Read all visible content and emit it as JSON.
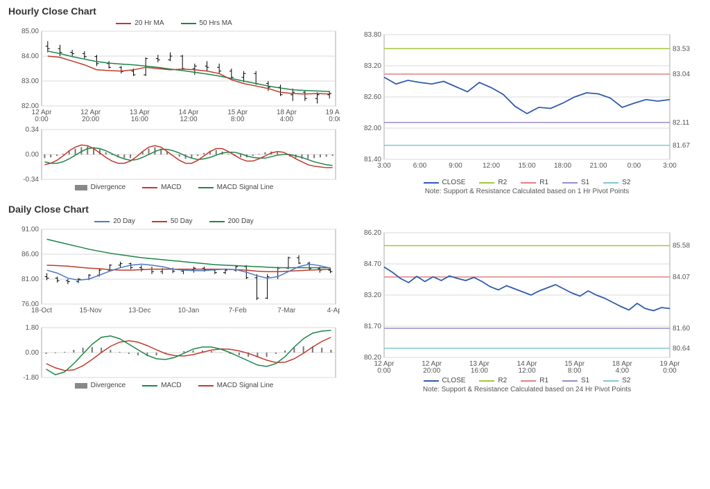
{
  "hourly": {
    "title": "Hourly Close Chart",
    "price": {
      "ylim": [
        82.0,
        85.0
      ],
      "yticks": [
        82.0,
        83.0,
        84.0,
        85.0
      ],
      "xlabels": [
        "12 Apr\n0:00",
        "12 Apr\n20:00",
        "13 Apr\n16:00",
        "14 Apr\n12:00",
        "15 Apr\n8:00",
        "18 Apr\n4:00",
        "19 Apr\n0:00"
      ],
      "legend": [
        {
          "label": "20 Hr MA",
          "color": "#c0392b"
        },
        {
          "label": "50 Hrs MA",
          "color": "#1e8449"
        }
      ],
      "ma20": [
        84.0,
        83.95,
        83.8,
        83.65,
        83.45,
        83.42,
        83.4,
        83.45,
        83.55,
        83.5,
        83.45,
        83.48,
        83.45,
        83.4,
        83.3,
        83.05,
        82.9,
        82.8,
        82.7,
        82.55,
        82.5,
        82.48,
        82.5,
        82.48
      ],
      "ma50": [
        84.2,
        84.1,
        83.98,
        83.88,
        83.78,
        83.72,
        83.68,
        83.65,
        83.6,
        83.55,
        83.48,
        83.42,
        83.35,
        83.28,
        83.2,
        83.1,
        83.0,
        82.9,
        82.8,
        82.72,
        82.65,
        82.62,
        82.6,
        82.58
      ],
      "ohlc": [
        [
          84.4,
          84.6,
          84.15,
          84.3
        ],
        [
          84.3,
          84.45,
          84.0,
          84.15
        ],
        [
          84.15,
          84.25,
          84.0,
          84.1
        ],
        [
          84.1,
          84.2,
          83.9,
          83.98
        ],
        [
          83.98,
          84.05,
          83.6,
          83.7
        ],
        [
          83.7,
          83.8,
          83.5,
          83.55
        ],
        [
          83.55,
          83.6,
          83.3,
          83.38
        ],
        [
          83.4,
          83.5,
          83.2,
          83.25
        ],
        [
          83.25,
          83.95,
          83.2,
          83.9
        ],
        [
          83.9,
          84.05,
          83.75,
          83.85
        ],
        [
          83.85,
          84.15,
          83.8,
          84.0
        ],
        [
          84.0,
          84.05,
          83.45,
          83.5
        ],
        [
          83.5,
          83.7,
          83.25,
          83.6
        ],
        [
          83.6,
          83.8,
          83.4,
          83.55
        ],
        [
          83.55,
          83.7,
          83.3,
          83.4
        ],
        [
          83.4,
          83.5,
          83.1,
          83.15
        ],
        [
          83.15,
          83.4,
          82.95,
          83.3
        ],
        [
          83.3,
          83.4,
          82.85,
          82.9
        ],
        [
          82.9,
          83.0,
          82.6,
          82.75
        ],
        [
          82.75,
          82.85,
          82.4,
          82.45
        ],
        [
          82.45,
          82.7,
          82.2,
          82.55
        ],
        [
          82.55,
          82.6,
          82.2,
          82.3
        ],
        [
          82.3,
          82.55,
          82.1,
          82.45
        ],
        [
          82.45,
          82.6,
          82.3,
          82.5
        ]
      ],
      "ma20_color": "#c0392b",
      "ma50_color": "#1e8449",
      "ohlc_color": "#000"
    },
    "macd": {
      "ylim": [
        -0.34,
        0.34
      ],
      "yticks": [
        -0.34,
        0.0,
        0.34
      ],
      "legend": [
        {
          "label": "Divergence",
          "color": "#888",
          "box": true
        },
        {
          "label": "MACD",
          "color": "#c0392b"
        },
        {
          "label": "MACD Signal Line",
          "color": "#1e8449"
        }
      ],
      "div": [
        -0.05,
        -0.04,
        -0.02,
        0.01,
        0.05,
        0.08,
        0.1,
        0.11,
        0.1,
        0.07,
        0.03,
        -0.01,
        -0.04,
        -0.05,
        -0.05,
        0.0,
        0.04,
        0.08,
        0.1,
        0.08,
        0.04,
        0.0,
        -0.03,
        -0.06,
        -0.05,
        -0.02,
        0.02,
        0.05,
        0.06,
        0.04,
        0.01,
        -0.02,
        -0.04,
        -0.04,
        -0.02,
        0.01,
        0.03,
        0.04,
        0.03,
        0.0,
        -0.03,
        -0.05,
        -0.06,
        -0.06,
        -0.05,
        -0.04,
        -0.03,
        -0.02
      ],
      "macd": [
        -0.14,
        -0.12,
        -0.08,
        -0.02,
        0.05,
        0.1,
        0.13,
        0.12,
        0.08,
        0.02,
        -0.04,
        -0.09,
        -0.12,
        -0.12,
        -0.09,
        -0.03,
        0.04,
        0.1,
        0.12,
        0.1,
        0.04,
        -0.02,
        -0.08,
        -0.12,
        -0.12,
        -0.08,
        -0.02,
        0.04,
        0.08,
        0.08,
        0.04,
        -0.01,
        -0.06,
        -0.09,
        -0.09,
        -0.06,
        -0.02,
        0.02,
        0.04,
        0.03,
        -0.01,
        -0.06,
        -0.1,
        -0.14,
        -0.16,
        -0.17,
        -0.18,
        -0.18
      ],
      "signal": [
        -0.1,
        -0.12,
        -0.12,
        -0.1,
        -0.06,
        -0.01,
        0.04,
        0.08,
        0.09,
        0.08,
        0.05,
        0.01,
        -0.03,
        -0.06,
        -0.08,
        -0.07,
        -0.04,
        0.0,
        0.04,
        0.07,
        0.07,
        0.05,
        0.02,
        -0.02,
        -0.05,
        -0.07,
        -0.06,
        -0.04,
        -0.01,
        0.02,
        0.03,
        0.03,
        0.01,
        -0.02,
        -0.04,
        -0.05,
        -0.05,
        -0.03,
        -0.01,
        0.0,
        0.0,
        -0.02,
        -0.04,
        -0.07,
        -0.1,
        -0.12,
        -0.14,
        -0.15
      ],
      "macd_color": "#c0392b",
      "signal_color": "#1e8449",
      "div_color": "#777"
    },
    "pivot": {
      "ylim": [
        81.4,
        83.8
      ],
      "yticks": [
        81.4,
        82.0,
        82.6,
        83.2,
        83.8
      ],
      "xlabels": [
        "3:00",
        "6:00",
        "9:00",
        "12:00",
        "15:00",
        "18:00",
        "21:00",
        "0:00",
        "3:00"
      ],
      "levels": [
        {
          "name": "R2",
          "val": 83.53,
          "color": "#a4c639"
        },
        {
          "name": "R1",
          "val": 83.04,
          "color": "#e08080"
        },
        {
          "name": "S1",
          "val": 82.11,
          "color": "#9b8bc9"
        },
        {
          "name": "S2",
          "val": 81.67,
          "color": "#7ec8d8"
        }
      ],
      "close": [
        82.98,
        82.85,
        82.92,
        82.88,
        82.85,
        82.9,
        82.8,
        82.7,
        82.88,
        82.78,
        82.65,
        82.42,
        82.28,
        82.4,
        82.38,
        82.48,
        82.6,
        82.68,
        82.66,
        82.58,
        82.4,
        82.48,
        82.55,
        82.52,
        82.55
      ],
      "close_color": "#2e5aac",
      "legend": [
        {
          "label": "CLOSE",
          "color": "#2e5aac"
        },
        {
          "label": "R2",
          "color": "#a4c639"
        },
        {
          "label": "R1",
          "color": "#e08080"
        },
        {
          "label": "S1",
          "color": "#9b8bc9"
        },
        {
          "label": "S2",
          "color": "#7ec8d8"
        }
      ],
      "note": "Note: Support & Resistance Calculated based on 1 Hr Pivot Points"
    }
  },
  "daily": {
    "title": "Daily Close Chart",
    "price": {
      "ylim": [
        76.0,
        91.0
      ],
      "yticks": [
        76.0,
        81.0,
        86.0,
        91.0
      ],
      "xlabels": [
        "18-Oct",
        "15-Nov",
        "13-Dec",
        "10-Jan",
        "7-Feb",
        "7-Mar",
        "4-Apr"
      ],
      "legend": [
        {
          "label": "20 Day",
          "color": "#4a78c4"
        },
        {
          "label": "50 Day",
          "color": "#c0392b"
        },
        {
          "label": "200 Day",
          "color": "#1e8449"
        }
      ],
      "ma20": [
        82.8,
        82.2,
        81.2,
        80.8,
        81.0,
        81.8,
        82.6,
        83.3,
        83.8,
        84.0,
        83.8,
        83.5,
        83.0,
        82.8,
        82.7,
        82.7,
        82.9,
        83.0,
        82.9,
        82.4,
        81.7,
        81.2,
        81.5,
        82.5,
        83.5,
        84.0,
        83.7,
        83.2
      ],
      "ma50": [
        83.8,
        83.7,
        83.6,
        83.4,
        83.2,
        83.1,
        82.9,
        82.8,
        82.8,
        82.9,
        83.0,
        83.0,
        83.0,
        83.0,
        83.0,
        83.0,
        83.0,
        83.0,
        82.9,
        82.8,
        82.6,
        82.5,
        82.5,
        82.6,
        82.7,
        82.8,
        82.9,
        83.0
      ],
      "ma200": [
        89.0,
        88.5,
        88.0,
        87.5,
        87.0,
        86.6,
        86.2,
        85.9,
        85.6,
        85.3,
        85.1,
        84.9,
        84.7,
        84.5,
        84.3,
        84.1,
        83.9,
        83.8,
        83.7,
        83.6,
        83.5,
        83.4,
        83.3,
        83.3,
        83.3,
        83.3,
        83.3,
        83.3
      ],
      "ohlc": [
        [
          81.5,
          82.2,
          80.8,
          81.2
        ],
        [
          81.2,
          81.5,
          80.3,
          80.7
        ],
        [
          80.7,
          81.0,
          80.0,
          80.5
        ],
        [
          80.5,
          81.2,
          80.2,
          81.0
        ],
        [
          81.0,
          82.0,
          80.8,
          81.8
        ],
        [
          81.8,
          83.0,
          81.5,
          82.8
        ],
        [
          82.8,
          84.0,
          82.5,
          83.8
        ],
        [
          83.8,
          84.5,
          83.2,
          84.1
        ],
        [
          84.1,
          84.3,
          83.0,
          83.3
        ],
        [
          83.3,
          83.8,
          82.5,
          83.0
        ],
        [
          83.0,
          83.5,
          82.0,
          82.5
        ],
        [
          82.5,
          83.2,
          82.0,
          83.0
        ],
        [
          83.0,
          83.3,
          82.2,
          82.6
        ],
        [
          82.6,
          83.0,
          82.0,
          82.8
        ],
        [
          82.8,
          83.5,
          82.3,
          83.2
        ],
        [
          83.2,
          83.5,
          82.5,
          82.8
        ],
        [
          82.8,
          83.0,
          82.0,
          82.3
        ],
        [
          82.3,
          83.0,
          82.0,
          82.8
        ],
        [
          82.8,
          83.8,
          82.5,
          83.5
        ],
        [
          83.5,
          83.8,
          81.0,
          81.3
        ],
        [
          81.3,
          82.0,
          76.8,
          77.2
        ],
        [
          77.2,
          82.0,
          77.0,
          81.5
        ],
        [
          81.5,
          83.5,
          81.0,
          83.2
        ],
        [
          83.2,
          85.5,
          83.0,
          85.3
        ],
        [
          85.3,
          85.8,
          84.0,
          84.2
        ],
        [
          84.2,
          84.5,
          82.8,
          83.1
        ],
        [
          83.1,
          83.5,
          82.3,
          82.8
        ],
        [
          82.8,
          83.2,
          82.2,
          82.5
        ]
      ],
      "ma20_color": "#4a78c4",
      "ma50_color": "#c0392b",
      "ma200_color": "#1e8449",
      "ohlc_color": "#000"
    },
    "macd": {
      "ylim": [
        -1.8,
        1.8
      ],
      "yticks": [
        -1.8,
        0.0,
        1.8
      ],
      "legend": [
        {
          "label": "Divergence",
          "color": "#888",
          "box": true
        },
        {
          "label": "MACD",
          "color": "#1e8449"
        },
        {
          "label": "MACD Signal Line",
          "color": "#c0392b"
        }
      ],
      "div": [
        -0.1,
        -0.05,
        0.05,
        0.2,
        0.35,
        0.4,
        0.35,
        0.2,
        0.05,
        -0.1,
        -0.2,
        -0.25,
        -0.2,
        -0.1,
        0.0,
        0.1,
        0.15,
        0.15,
        0.1,
        0.02,
        -0.1,
        -0.2,
        -0.3,
        -0.35,
        -0.3,
        -0.1,
        0.15,
        0.35,
        0.45,
        0.45,
        0.35,
        0.2
      ],
      "macd": [
        -1.2,
        -1.6,
        -1.4,
        -0.8,
        -0.1,
        0.6,
        1.1,
        1.2,
        1.0,
        0.6,
        0.2,
        -0.2,
        -0.45,
        -0.5,
        -0.35,
        -0.05,
        0.25,
        0.4,
        0.4,
        0.25,
        0.0,
        -0.3,
        -0.6,
        -0.9,
        -1.0,
        -0.8,
        -0.3,
        0.4,
        1.0,
        1.4,
        1.55,
        1.6
      ],
      "signal": [
        -0.8,
        -1.1,
        -1.3,
        -1.25,
        -0.95,
        -0.5,
        0.0,
        0.45,
        0.75,
        0.85,
        0.75,
        0.5,
        0.2,
        -0.08,
        -0.22,
        -0.25,
        -0.15,
        0.02,
        0.18,
        0.26,
        0.24,
        0.12,
        -0.06,
        -0.3,
        -0.55,
        -0.72,
        -0.7,
        -0.45,
        -0.05,
        0.4,
        0.8,
        1.1
      ],
      "macd_color": "#1e8449",
      "signal_color": "#c0392b",
      "div_color": "#777"
    },
    "pivot": {
      "ylim": [
        80.2,
        86.2
      ],
      "yticks": [
        80.2,
        81.7,
        83.2,
        84.7,
        86.2
      ],
      "xlabels": [
        "12 Apr\n0:00",
        "12 Apr\n20:00",
        "13 Apr\n16:00",
        "14 Apr\n12:00",
        "15 Apr\n8:00",
        "18 Apr\n4:00",
        "19 Apr\n0:00"
      ],
      "levels": [
        {
          "name": "R2",
          "val": 85.58,
          "color": "#a4c639"
        },
        {
          "name": "R1",
          "val": 84.07,
          "color": "#e08080"
        },
        {
          "name": "S1",
          "val": 81.6,
          "color": "#9b8bc9"
        },
        {
          "name": "S2",
          "val": 80.64,
          "color": "#7ec8d8"
        }
      ],
      "close": [
        84.55,
        84.3,
        84.0,
        83.8,
        84.1,
        83.85,
        84.08,
        83.9,
        84.12,
        84.0,
        83.9,
        84.05,
        83.85,
        83.6,
        83.45,
        83.65,
        83.5,
        83.35,
        83.2,
        83.4,
        83.55,
        83.7,
        83.5,
        83.3,
        83.15,
        83.4,
        83.2,
        83.05,
        82.85,
        82.65,
        82.48,
        82.8,
        82.55,
        82.45,
        82.6,
        82.55
      ],
      "close_color": "#2e5aac",
      "legend": [
        {
          "label": "CLOSE",
          "color": "#2e5aac"
        },
        {
          "label": "R2",
          "color": "#a4c639"
        },
        {
          "label": "R1",
          "color": "#e08080"
        },
        {
          "label": "S1",
          "color": "#9b8bc9"
        },
        {
          "label": "S2",
          "color": "#7ec8d8"
        }
      ],
      "note": "Note: Support & Resistance Calculated based on 24 Hr Pivot Points"
    }
  },
  "grid_color": "#d9d9d9",
  "border_color": "#aaa",
  "text_color": "#555"
}
